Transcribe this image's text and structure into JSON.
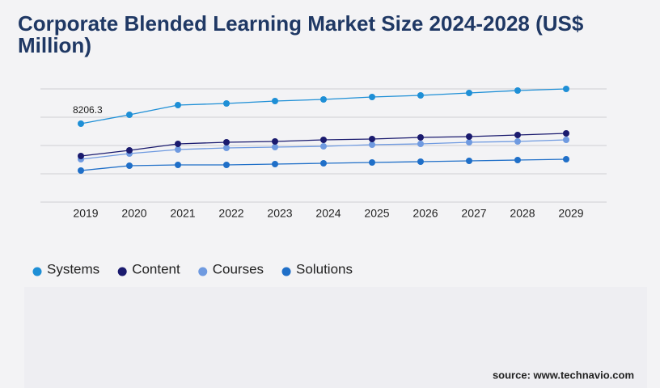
{
  "chart_data": {
    "type": "line",
    "title": "Corporate Blended Learning Market Size 2024-2028 (US$ Million)",
    "categories": [
      "2019",
      "2020",
      "2021",
      "2022",
      "2023",
      "2024",
      "2025",
      "2026",
      "2027",
      "2028",
      "2029"
    ],
    "series": [
      {
        "name": "Systems",
        "color": "#1e8fd6",
        "values": [
          8206.3,
          9137,
          10152,
          10321,
          10575,
          10744,
          10998,
          11167,
          11421,
          11675,
          11844
        ]
      },
      {
        "name": "Content",
        "color": "#1a1a6e",
        "values": [
          4822,
          5414,
          6091,
          6260,
          6345,
          6514,
          6599,
          6768,
          6853,
          7022,
          7191
        ]
      },
      {
        "name": "Courses",
        "color": "#6f9ae0",
        "values": [
          4484,
          5076,
          5499,
          5668,
          5753,
          5837,
          6007,
          6091,
          6260,
          6345,
          6514
        ]
      },
      {
        "name": "Solutions",
        "color": "#1f6fc8",
        "values": [
          3299,
          3807,
          3892,
          3892,
          3976,
          4061,
          4145,
          4230,
          4315,
          4399,
          4484
        ]
      }
    ],
    "ylim": [
      0,
      11844
    ],
    "source": "source: www.technavio.com"
  }
}
